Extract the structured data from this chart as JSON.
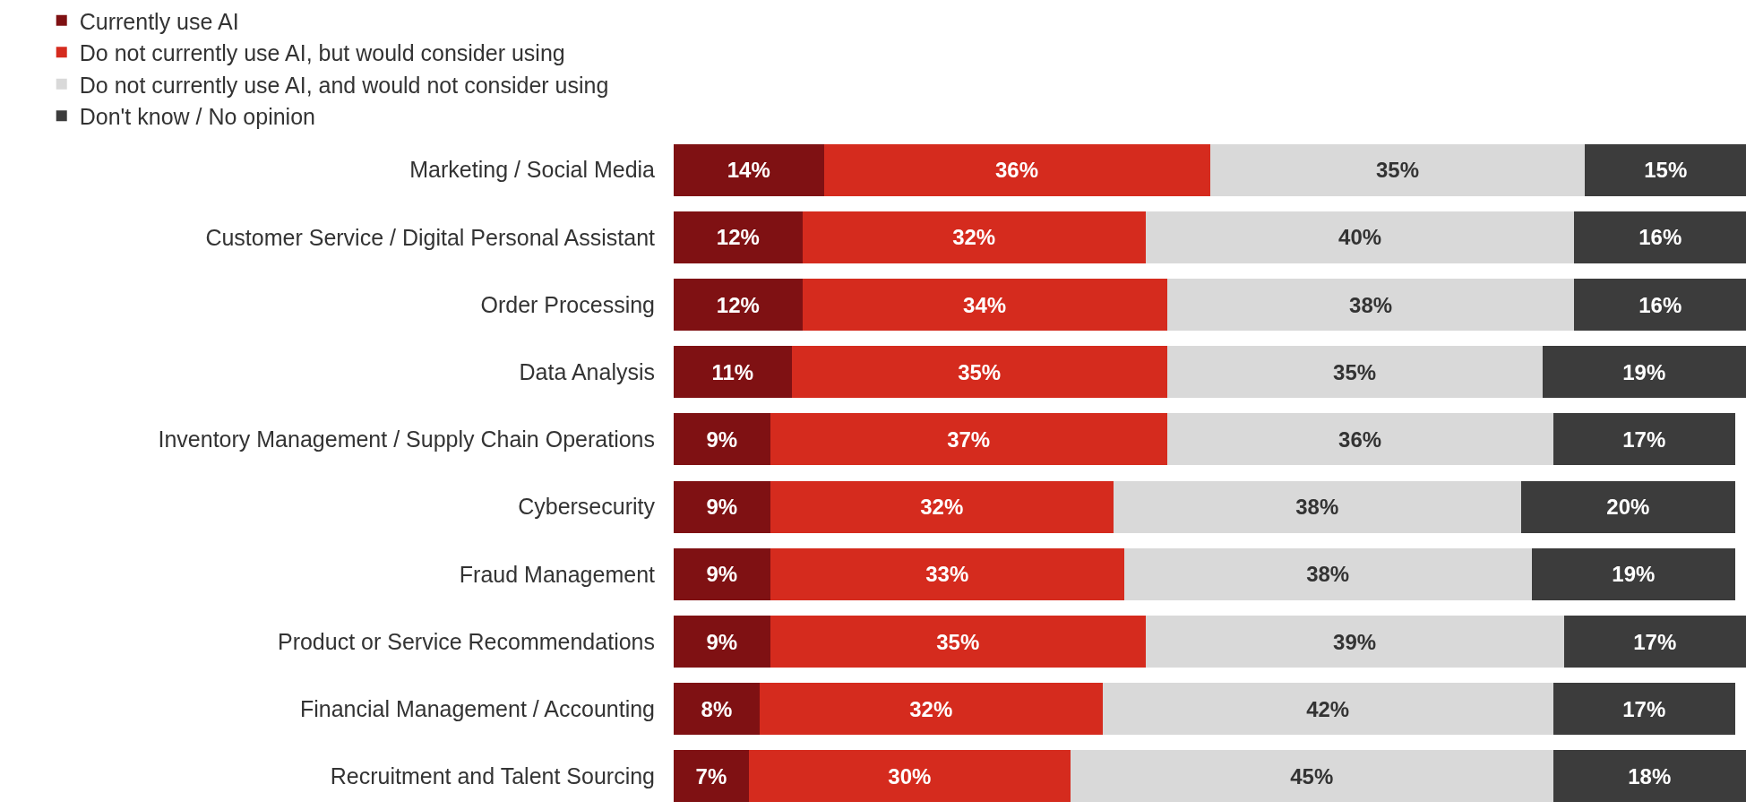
{
  "chart_data": {
    "type": "bar",
    "orientation": "horizontal",
    "stacked": true,
    "legend": "top",
    "tick_labels": "y",
    "categories": [
      "Marketing / Social Media",
      "Customer Service / Digital Personal Assistant",
      "Order Processing",
      "Data Analysis",
      "Inventory Management / Supply Chain Operations",
      "Cybersecurity",
      "Fraud Management",
      "Product or Service Recommendations",
      "Financial Management / Accounting",
      "Recruitment and Talent Sourcing"
    ],
    "series": [
      {
        "name": "Currently use AI",
        "color": "#7f1113",
        "values": [
          14,
          12,
          12,
          11,
          9,
          9,
          9,
          9,
          8,
          7
        ],
        "value_labels": [
          "14%",
          "12%",
          "12%",
          "11%",
          "9%",
          "9%",
          "9%",
          "9%",
          "8%",
          "7%"
        ]
      },
      {
        "name": "Do not currently use AI, but would consider using",
        "color": "#d52b1e",
        "values": [
          36,
          32,
          34,
          35,
          37,
          32,
          33,
          35,
          32,
          30
        ],
        "value_labels": [
          "36%",
          "32%",
          "34%",
          "35%",
          "37%",
          "32%",
          "33%",
          "35%",
          "32%",
          "30%"
        ]
      },
      {
        "name": "Do not currently use AI, and would not consider using",
        "color": "#d9d9d9",
        "values": [
          35,
          40,
          38,
          35,
          36,
          38,
          38,
          39,
          42,
          45
        ],
        "value_labels": [
          "35%",
          "40%",
          "38%",
          "35%",
          "36%",
          "38%",
          "38%",
          "39%",
          "42%",
          "45%"
        ]
      },
      {
        "name": "Don't know / No opinion",
        "color": "#3c3c3c",
        "values": [
          15,
          16,
          16,
          19,
          17,
          20,
          19,
          17,
          17,
          18
        ],
        "value_labels": [
          "15%",
          "16%",
          "16%",
          "19%",
          "17%",
          "20%",
          "19%",
          "17%",
          "17%",
          "18%"
        ]
      }
    ]
  }
}
